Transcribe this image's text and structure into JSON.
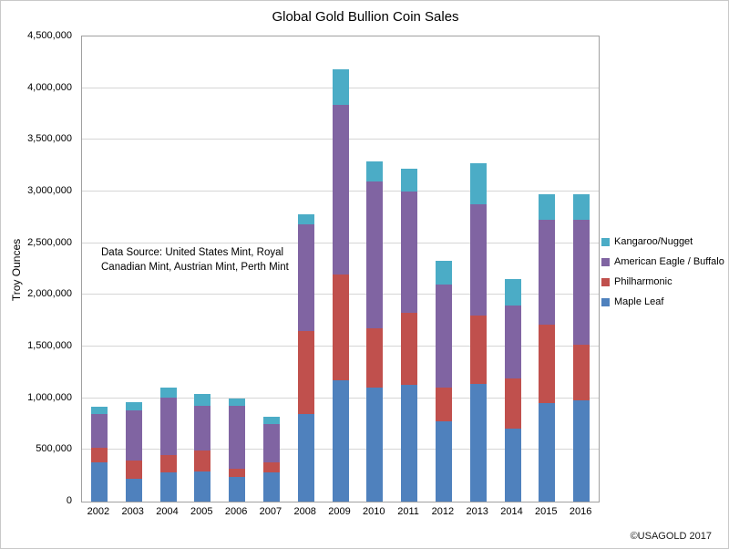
{
  "frame": {
    "copyright": "©USAGOLD 2017"
  },
  "annotation": {
    "line1": "Data Source: United States Mint, Royal",
    "line2": "Canadian Mint, Austrian Mint, Perth Mint"
  },
  "chart_data": {
    "type": "bar",
    "stacked": true,
    "title": "Global Gold Bullion Coin Sales",
    "xlabel": "",
    "ylabel": "Troy Ounces",
    "categories": [
      "2002",
      "2003",
      "2004",
      "2005",
      "2006",
      "2007",
      "2008",
      "2009",
      "2010",
      "2011",
      "2012",
      "2013",
      "2014",
      "2015",
      "2016"
    ],
    "series": [
      {
        "name": "Maple Leaf",
        "color": "#4F81BD",
        "values": [
          380000,
          220000,
          280000,
          290000,
          240000,
          280000,
          850000,
          1170000,
          1100000,
          1130000,
          780000,
          1140000,
          710000,
          950000,
          980000
        ]
      },
      {
        "name": "Philharmonic",
        "color": "#C0504D",
        "values": [
          140000,
          180000,
          170000,
          200000,
          80000,
          100000,
          800000,
          1030000,
          580000,
          700000,
          320000,
          660000,
          480000,
          760000,
          540000
        ]
      },
      {
        "name": "American Eagle / Buffalo",
        "color": "#8064A2",
        "values": [
          330000,
          480000,
          560000,
          440000,
          610000,
          370000,
          1030000,
          1640000,
          1420000,
          1170000,
          1000000,
          1080000,
          710000,
          1020000,
          1210000
        ]
      },
      {
        "name": "Kangaroo/Nugget",
        "color": "#4BACC6",
        "values": [
          70000,
          80000,
          90000,
          110000,
          70000,
          70000,
          100000,
          340000,
          190000,
          220000,
          230000,
          390000,
          250000,
          240000,
          240000
        ]
      }
    ],
    "ylim": [
      0,
      4500000
    ],
    "ytick_step": 500000,
    "ytick_labels": [
      "0",
      "500,000",
      "1,000,000",
      "1,500,000",
      "2,000,000",
      "2,500,000",
      "3,000,000",
      "3,500,000",
      "4,000,000",
      "4,500,000"
    ],
    "grid": true,
    "legend_position": "right",
    "legend_order": [
      "Kangaroo/Nugget",
      "American Eagle / Buffalo",
      "Philharmonic",
      "Maple Leaf"
    ]
  }
}
